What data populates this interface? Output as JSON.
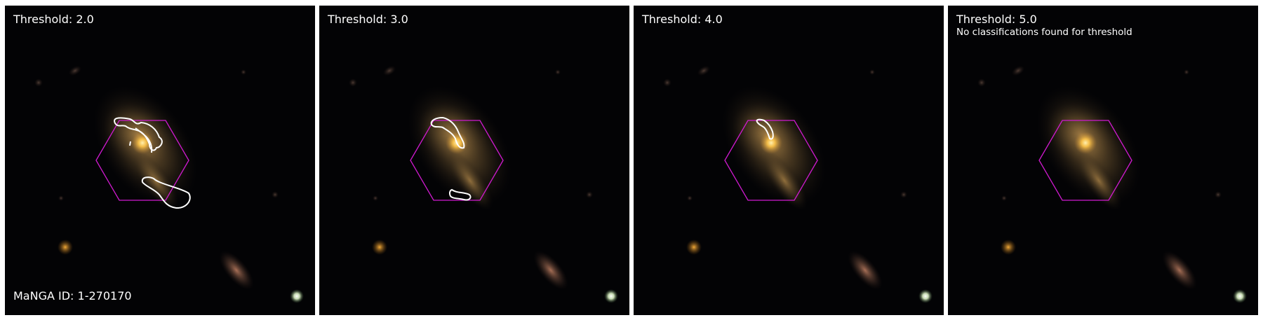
{
  "figure": {
    "panels": [
      {
        "title": "Threshold: 2.0",
        "note": ""
      },
      {
        "title": "Threshold: 3.0",
        "note": ""
      },
      {
        "title": "Threshold: 4.0",
        "note": ""
      },
      {
        "title": "Threshold: 5.0",
        "note": "No classifications found for threshold"
      }
    ],
    "manga_id_label": "MaNGA ID: 1-270170"
  },
  "colors": {
    "background": "#030305",
    "ifu_hexagon": "#d01ad0",
    "contour": "#ffffff",
    "galaxy_core": "#ffc64a"
  }
}
